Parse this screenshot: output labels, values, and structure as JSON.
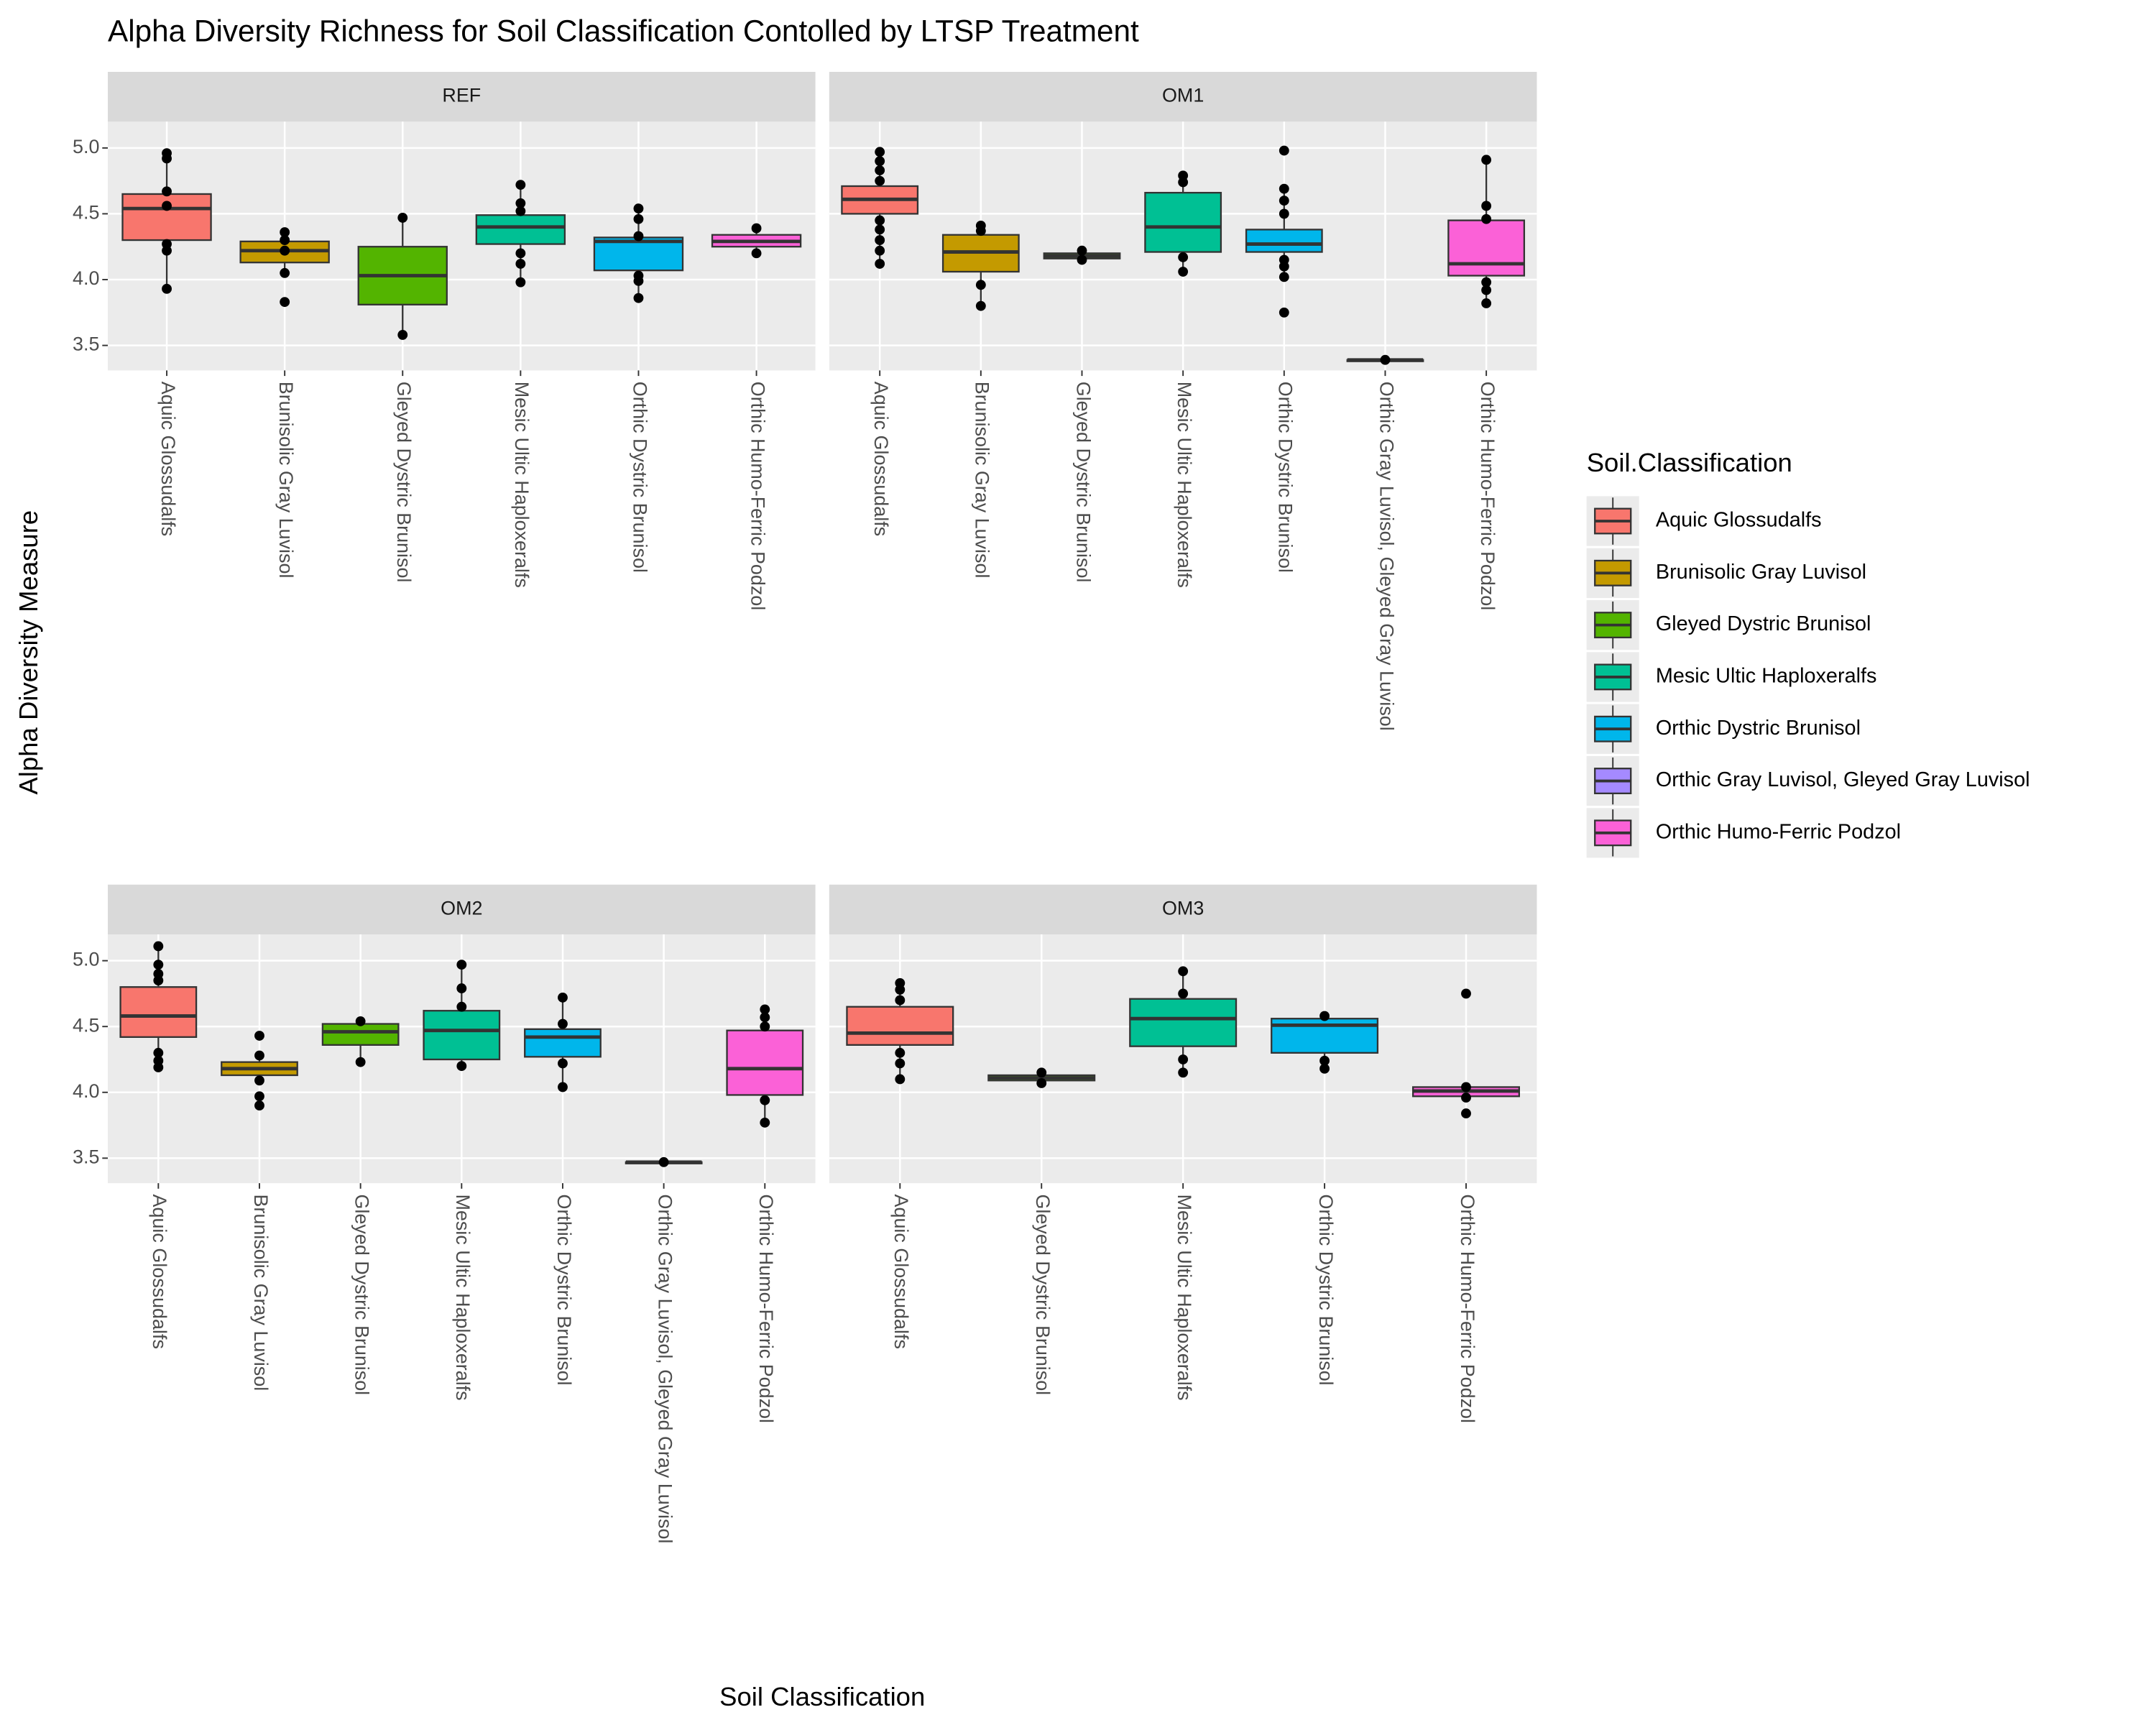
{
  "chart_data": {
    "type": "box",
    "title": "Alpha Diversity Richness for Soil Classification Contolled by LTSP Treatment",
    "x_label": "Soil Classification",
    "y_label": "Alpha Diversity Measure",
    "legend_title": "Soil.Classification",
    "legend": [
      {
        "name": "Aquic Glossudalfs",
        "color": "#F8766D"
      },
      {
        "name": "Brunisolic Gray Luvisol",
        "color": "#C49A00"
      },
      {
        "name": "Gleyed Dystric Brunisol",
        "color": "#53B400"
      },
      {
        "name": "Mesic Ultic Haploxeralfs",
        "color": "#00C094"
      },
      {
        "name": "Orthic Dystric Brunisol",
        "color": "#00B6EB"
      },
      {
        "name": "Orthic Gray Luvisol, Gleyed Gray Luvisol",
        "color": "#A58AFF"
      },
      {
        "name": "Orthic Humo-Ferric Podzol",
        "color": "#FB61D7"
      }
    ],
    "ylim": [
      3.31,
      5.2
    ],
    "yticks": [
      3.5,
      {
        "value": 4,
        "label": "4.0"
      },
      4.5,
      {
        "value": 5,
        "label": "5.0"
      }
    ],
    "grid": true,
    "panels": [
      {
        "name": "REF",
        "categories": [
          "Aquic Glossudalfs",
          "Brunisolic Gray Luvisol",
          "Gleyed Dystric Brunisol",
          "Mesic Ultic Haploxeralfs",
          "Orthic Dystric Brunisol",
          "Orthic Humo-Ferric Podzol"
        ],
        "boxes": [
          {
            "min": 3.93,
            "q1": 4.3,
            "median": 4.54,
            "q3": 4.65,
            "max": 4.96,
            "points": [
              4.96,
              4.92,
              4.67,
              4.56,
              4.27,
              4.22,
              3.93
            ]
          },
          {
            "min": 4.05,
            "q1": 4.13,
            "median": 4.22,
            "q3": 4.29,
            "max": 4.36,
            "points": [
              4.36,
              4.3,
              4.22,
              4.05,
              3.83
            ]
          },
          {
            "min": 3.58,
            "q1": 3.81,
            "median": 4.03,
            "q3": 4.25,
            "max": 4.47,
            "points": [
              4.47,
              3.58
            ]
          },
          {
            "min": 3.98,
            "q1": 4.27,
            "median": 4.4,
            "q3": 4.49,
            "max": 4.72,
            "points": [
              4.72,
              4.58,
              4.52,
              4.2,
              4.12,
              3.98
            ]
          },
          {
            "min": 3.86,
            "q1": 4.07,
            "median": 4.29,
            "q3": 4.32,
            "max": 4.54,
            "points": [
              4.54,
              4.46,
              4.33,
              4.03,
              3.99,
              3.86
            ]
          },
          {
            "min": 4.2,
            "q1": 4.25,
            "median": 4.29,
            "q3": 4.34,
            "max": 4.39,
            "points": [
              4.39,
              4.2
            ]
          }
        ]
      },
      {
        "name": "OM1",
        "categories": [
          "Aquic Glossudalfs",
          "Brunisolic Gray Luvisol",
          "Gleyed Dystric Brunisol",
          "Mesic Ultic Haploxeralfs",
          "Orthic Dystric Brunisol",
          "Orthic Gray Luvisol, Gleyed Gray Luvisol",
          "Orthic Humo-Ferric Podzol"
        ],
        "boxes": [
          {
            "min": 4.12,
            "q1": 4.5,
            "median": 4.61,
            "q3": 4.71,
            "max": 4.97,
            "points": [
              4.97,
              4.9,
              4.83,
              4.75,
              4.45,
              4.38,
              4.3,
              4.22,
              4.12
            ]
          },
          {
            "min": 3.8,
            "q1": 4.06,
            "median": 4.21,
            "q3": 4.34,
            "max": 4.41,
            "points": [
              4.41,
              4.37,
              3.96,
              3.8
            ]
          },
          {
            "min": 4.15,
            "q1": 4.16,
            "median": 4.18,
            "q3": 4.2,
            "max": 4.22,
            "points": [
              4.22,
              4.15
            ]
          },
          {
            "min": 4.06,
            "q1": 4.21,
            "median": 4.4,
            "q3": 4.66,
            "max": 4.79,
            "points": [
              4.79,
              4.74,
              4.17,
              4.06
            ]
          },
          {
            "min": 4.02,
            "q1": 4.21,
            "median": 4.27,
            "q3": 4.38,
            "max": 4.69,
            "points": [
              4.98,
              4.69,
              4.6,
              4.5,
              4.15,
              4.1,
              4.02,
              3.75
            ]
          },
          {
            "min": 3.39,
            "q1": 3.39,
            "median": 3.39,
            "q3": 3.39,
            "max": 3.39,
            "points": [
              3.39
            ]
          },
          {
            "min": 3.82,
            "q1": 4.03,
            "median": 4.12,
            "q3": 4.45,
            "max": 4.91,
            "points": [
              4.91,
              4.56,
              4.46,
              3.98,
              3.92,
              3.82
            ]
          }
        ]
      },
      {
        "name": "OM2",
        "categories": [
          "Aquic Glossudalfs",
          "Brunisolic Gray Luvisol",
          "Gleyed Dystric Brunisol",
          "Mesic Ultic Haploxeralfs",
          "Orthic Dystric Brunisol",
          "Orthic Gray Luvisol, Gleyed Gray Luvisol",
          "Orthic Humo-Ferric Podzol"
        ],
        "boxes": [
          {
            "min": 4.19,
            "q1": 4.42,
            "median": 4.58,
            "q3": 4.8,
            "max": 5.11,
            "points": [
              5.11,
              4.97,
              4.9,
              4.85,
              4.3,
              4.24,
              4.19
            ]
          },
          {
            "min": 4.09,
            "q1": 4.13,
            "median": 4.18,
            "q3": 4.23,
            "max": 4.28,
            "points": [
              4.43,
              4.28,
              4.09,
              3.97,
              3.9
            ]
          },
          {
            "min": 4.23,
            "q1": 4.36,
            "median": 4.46,
            "q3": 4.52,
            "max": 4.54,
            "points": [
              4.54,
              4.23
            ]
          },
          {
            "min": 4.2,
            "q1": 4.25,
            "median": 4.47,
            "q3": 4.62,
            "max": 4.97,
            "points": [
              4.97,
              4.79,
              4.65,
              4.2
            ]
          },
          {
            "min": 4.04,
            "q1": 4.27,
            "median": 4.42,
            "q3": 4.48,
            "max": 4.72,
            "points": [
              4.72,
              4.52,
              4.22,
              4.04
            ]
          },
          {
            "min": 3.47,
            "q1": 3.47,
            "median": 3.47,
            "q3": 3.47,
            "max": 3.47,
            "points": [
              3.47
            ]
          },
          {
            "min": 3.77,
            "q1": 3.98,
            "median": 4.18,
            "q3": 4.47,
            "max": 4.63,
            "points": [
              4.63,
              4.57,
              4.5,
              3.94,
              3.77
            ]
          }
        ]
      },
      {
        "name": "OM3",
        "categories": [
          "Aquic Glossudalfs",
          "Gleyed Dystric Brunisol",
          "Mesic Ultic Haploxeralfs",
          "Orthic Dystric Brunisol",
          "Orthic Humo-Ferric Podzol"
        ],
        "boxes": [
          {
            "min": 4.1,
            "q1": 4.36,
            "median": 4.45,
            "q3": 4.65,
            "max": 4.83,
            "points": [
              4.83,
              4.78,
              4.7,
              4.3,
              4.22,
              4.1
            ]
          },
          {
            "min": 4.07,
            "q1": 4.09,
            "median": 4.11,
            "q3": 4.13,
            "max": 4.15,
            "points": [
              4.15,
              4.07
            ]
          },
          {
            "min": 4.15,
            "q1": 4.35,
            "median": 4.56,
            "q3": 4.71,
            "max": 4.92,
            "points": [
              4.92,
              4.75,
              4.25,
              4.15
            ]
          },
          {
            "min": 4.18,
            "q1": 4.3,
            "median": 4.51,
            "q3": 4.56,
            "max": 4.58,
            "points": [
              4.58,
              4.24,
              4.18
            ]
          },
          {
            "min": 3.96,
            "q1": 3.97,
            "median": 4.01,
            "q3": 4.04,
            "max": 4.04,
            "points": [
              4.75,
              4.04,
              3.96,
              3.84
            ]
          }
        ]
      }
    ]
  }
}
